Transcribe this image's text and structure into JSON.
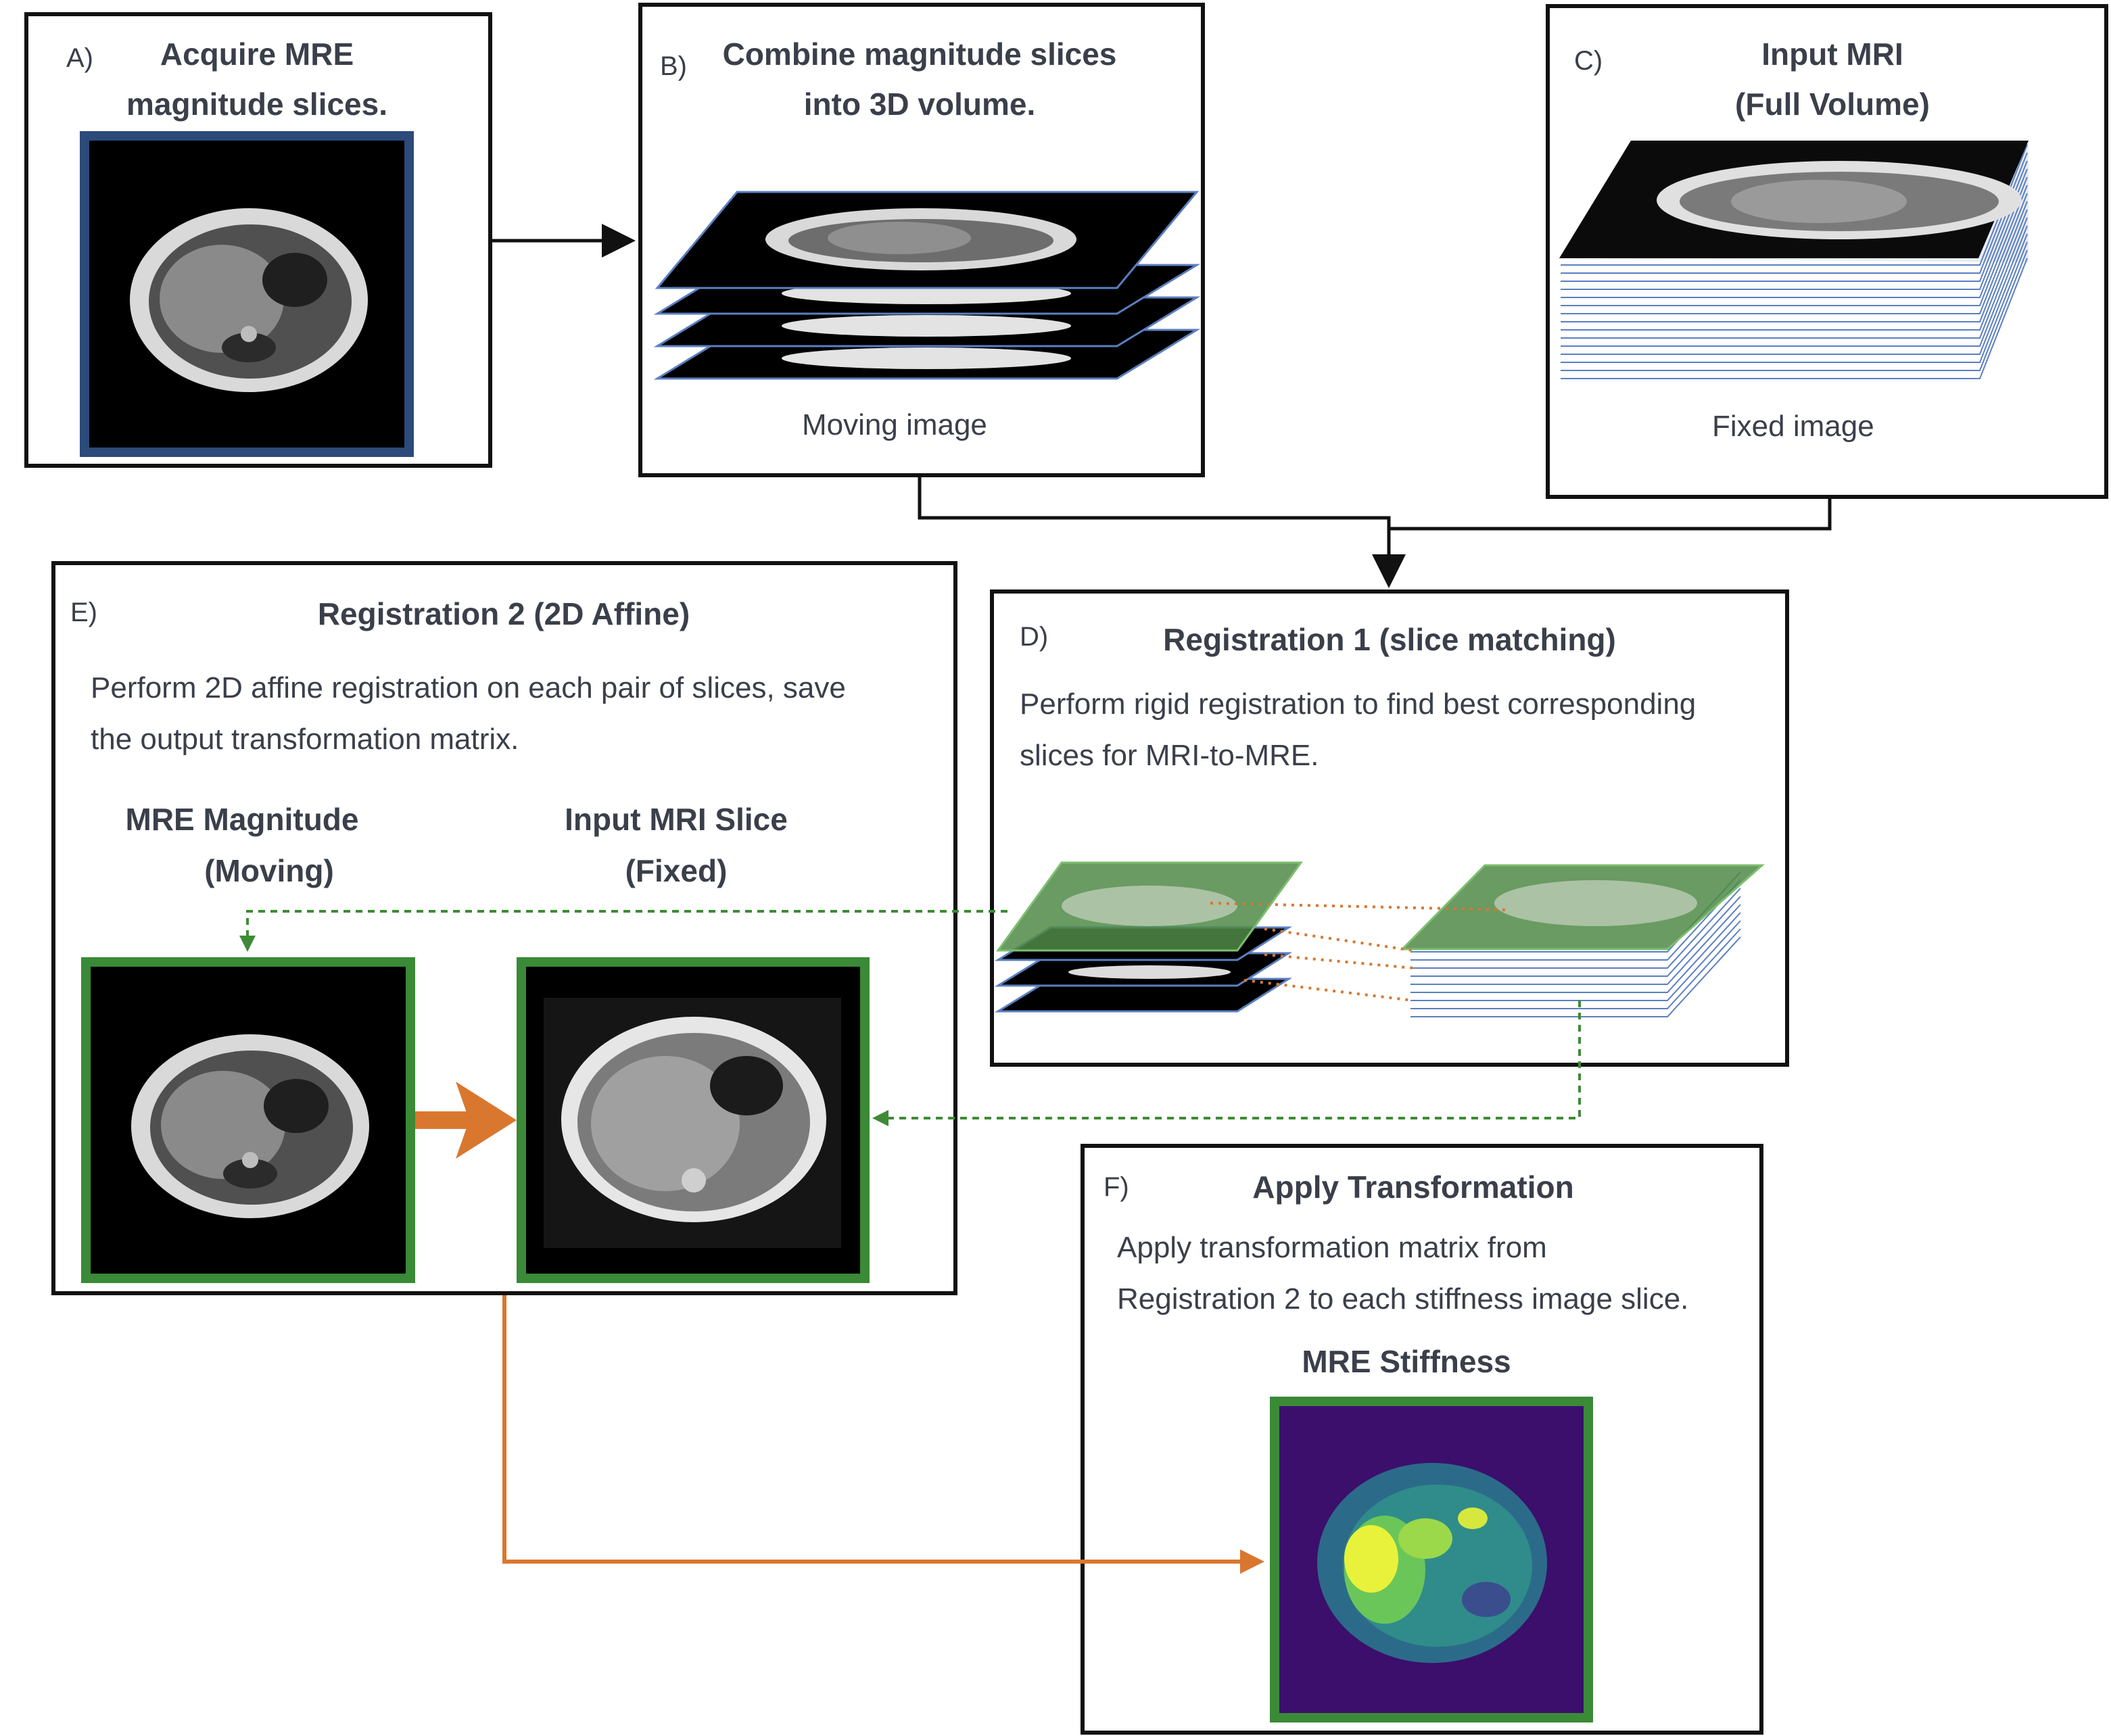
{
  "panels": {
    "a": {
      "label": "A)",
      "title_lines": [
        "Acquire MRE",
        "magnitude slices."
      ]
    },
    "b": {
      "label": "B)",
      "title_lines": [
        "Combine magnitude slices",
        "into 3D volume."
      ],
      "caption": "Moving image"
    },
    "c": {
      "label": "C)",
      "title_lines": [
        "Input MRI",
        "(Full Volume)"
      ],
      "caption": "Fixed image"
    },
    "d": {
      "label": "D)",
      "title": "Registration 1 (slice matching)",
      "body_lines": [
        "Perform rigid registration to find best corresponding",
        "slices for MRI-to-MRE."
      ]
    },
    "e": {
      "label": "E)",
      "title": "Registration 2 (2D Affine)",
      "body_lines": [
        "Perform 2D affine registration on each pair of slices, save",
        "the output transformation matrix."
      ],
      "moving_lines": [
        "MRE Magnitude",
        "(Moving)"
      ],
      "fixed_lines": [
        "Input MRI Slice",
        "(Fixed)"
      ]
    },
    "f": {
      "label": "F)",
      "title": "Apply Transformation",
      "body_lines": [
        "Apply transformation matrix from",
        "Registration 2 to each stiffness image slice."
      ],
      "subtitle": "MRE Stiffness"
    }
  },
  "colors": {
    "box_border": "#111111",
    "frame_blue": "#2c4a7a",
    "frame_green": "#3a8a37",
    "highlight_green": "#4f8a46",
    "orange": "#d9772f",
    "dotted_green": "#3f8a36",
    "stiffness_bg": "#3b0f6b",
    "stiffness_high": "#e9f23a"
  },
  "icons": {
    "mre_magnitude": "abdominal-mri-slice-icon",
    "mri_slice": "abdominal-mri-slice-icon",
    "stiffness_map": "stiffness-heatmap-icon",
    "stack": "slice-stack-icon"
  }
}
